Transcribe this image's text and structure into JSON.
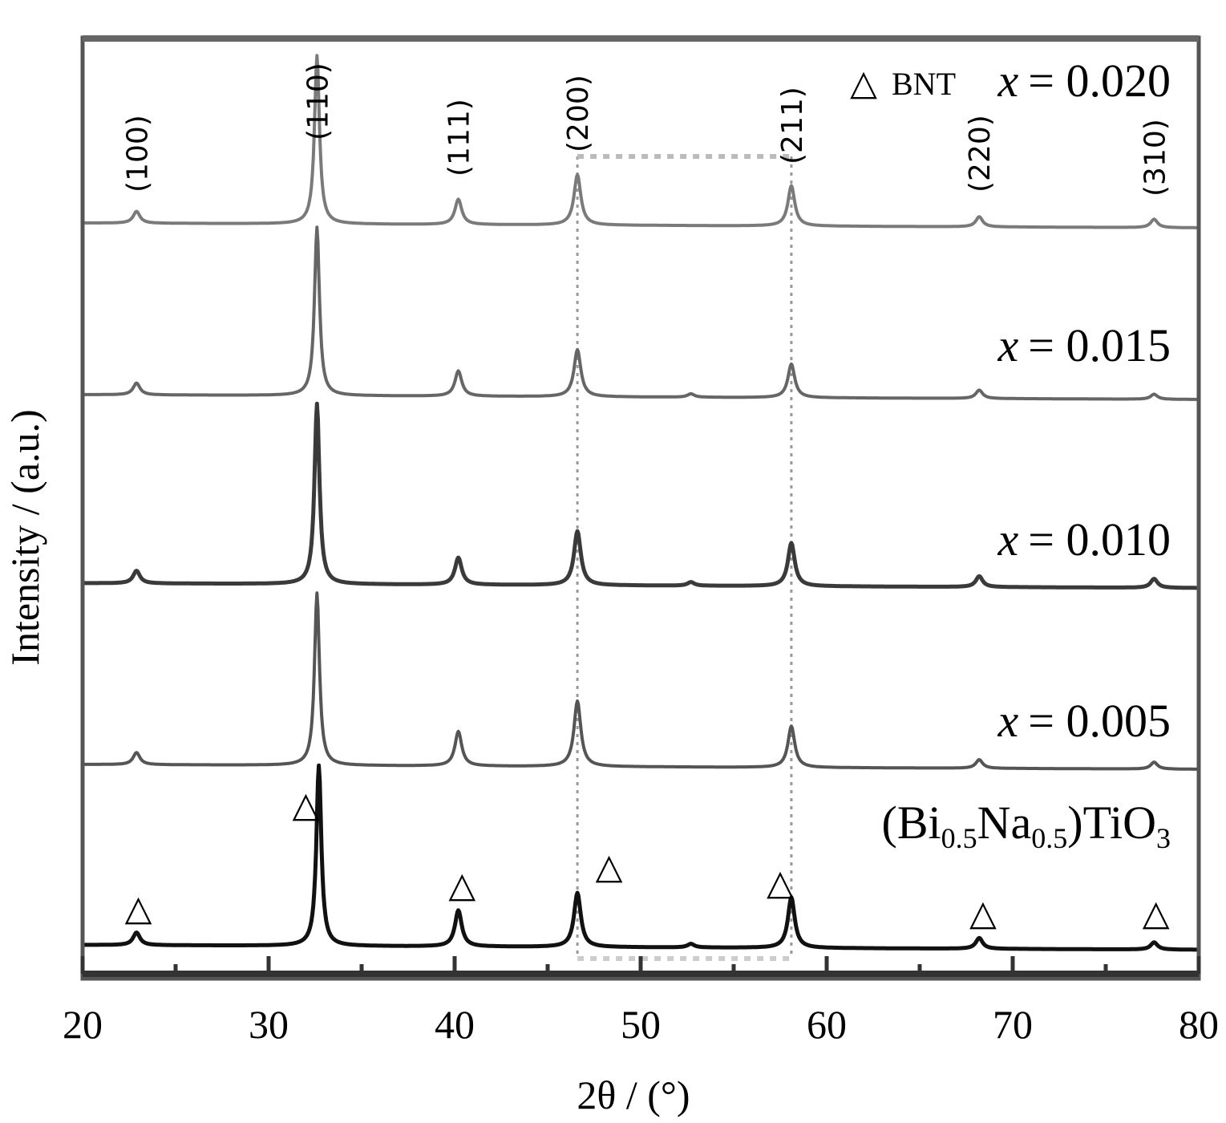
{
  "chart_data": {
    "type": "line",
    "title": "",
    "xlabel": "2θ / (°)",
    "ylabel": "Intensity / (a.u.)",
    "xlim": [
      20,
      80
    ],
    "x_ticks": [
      20,
      30,
      40,
      50,
      60,
      70,
      80
    ],
    "x_tick_labels": [
      "20",
      "30",
      "40",
      "50",
      "60",
      "70",
      "80"
    ],
    "legend": {
      "symbol": "△",
      "text": "BNT"
    },
    "peak_labels": [
      {
        "label": "(100)",
        "x": 22.9
      },
      {
        "label": "(110)",
        "x": 32.6
      },
      {
        "label": "(111)",
        "x": 40.2
      },
      {
        "label": "(200)",
        "x": 46.6
      },
      {
        "label": "(211)",
        "x": 58.1
      },
      {
        "label": "(220)",
        "x": 68.2
      },
      {
        "label": "(310)",
        "x": 77.6
      }
    ],
    "reference_lines_x": [
      46.6,
      58.1
    ],
    "series": [
      {
        "label_prefix": "",
        "label_var": "",
        "label_value": "",
        "formula": {
          "a": "(Bi",
          "s1": "0.5",
          "b": "Na",
          "s2": "0.5",
          "c": ")TiO",
          "s3": "3"
        },
        "color": "#111111",
        "stroke_width": 5,
        "peaks": [
          {
            "x": 22.9,
            "h": 0.07
          },
          {
            "x": 32.7,
            "h": 1.0
          },
          {
            "x": 40.2,
            "h": 0.2
          },
          {
            "x": 46.6,
            "h": 0.3
          },
          {
            "x": 52.7,
            "h": 0.02
          },
          {
            "x": 58.1,
            "h": 0.28
          },
          {
            "x": 68.2,
            "h": 0.06
          },
          {
            "x": 77.6,
            "h": 0.04
          }
        ],
        "markers_x": [
          23.0,
          32.0,
          40.4,
          48.3,
          57.5,
          68.4,
          77.7
        ],
        "marker_symbol": "△"
      },
      {
        "label_var": "x",
        "label_value": "= 0.005",
        "color": "#555555",
        "stroke_width": 4,
        "peaks": [
          {
            "x": 22.9,
            "h": 0.07
          },
          {
            "x": 32.6,
            "h": 1.0
          },
          {
            "x": 40.2,
            "h": 0.2
          },
          {
            "x": 46.6,
            "h": 0.38
          },
          {
            "x": 58.1,
            "h": 0.24
          },
          {
            "x": 68.2,
            "h": 0.05
          },
          {
            "x": 77.6,
            "h": 0.04
          }
        ]
      },
      {
        "label_var": "x",
        "label_value": "= 0.010",
        "color": "#3a3a3a",
        "stroke_width": 5,
        "peaks": [
          {
            "x": 22.9,
            "h": 0.07
          },
          {
            "x": 32.6,
            "h": 1.0
          },
          {
            "x": 40.2,
            "h": 0.15
          },
          {
            "x": 46.6,
            "h": 0.3
          },
          {
            "x": 52.7,
            "h": 0.02
          },
          {
            "x": 58.1,
            "h": 0.24
          },
          {
            "x": 68.2,
            "h": 0.06
          },
          {
            "x": 77.6,
            "h": 0.05
          }
        ]
      },
      {
        "label_var": "x",
        "label_value": "= 0.015",
        "color": "#666666",
        "stroke_width": 4,
        "peaks": [
          {
            "x": 22.9,
            "h": 0.07
          },
          {
            "x": 32.6,
            "h": 1.0
          },
          {
            "x": 40.2,
            "h": 0.15
          },
          {
            "x": 46.6,
            "h": 0.28
          },
          {
            "x": 52.7,
            "h": 0.02
          },
          {
            "x": 58.1,
            "h": 0.2
          },
          {
            "x": 68.2,
            "h": 0.05
          },
          {
            "x": 77.6,
            "h": 0.03
          }
        ]
      },
      {
        "label_var": "x",
        "label_value": "= 0.020",
        "color": "#7a7a7a",
        "stroke_width": 4,
        "peaks": [
          {
            "x": 22.9,
            "h": 0.07
          },
          {
            "x": 32.6,
            "h": 1.0
          },
          {
            "x": 40.2,
            "h": 0.15
          },
          {
            "x": 46.6,
            "h": 0.3
          },
          {
            "x": 58.1,
            "h": 0.24
          },
          {
            "x": 68.2,
            "h": 0.06
          },
          {
            "x": 77.6,
            "h": 0.05
          }
        ]
      }
    ]
  }
}
